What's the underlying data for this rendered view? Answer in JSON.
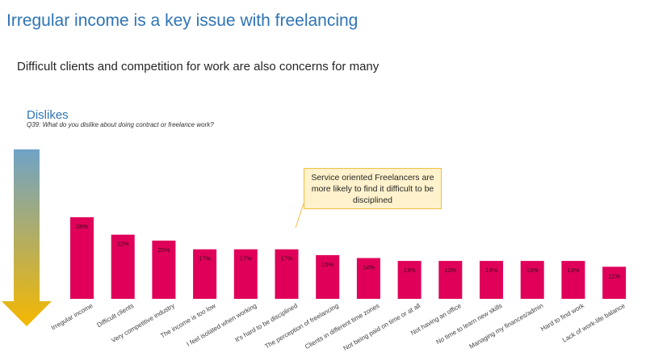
{
  "slide": {
    "title": "Irregular income is a key issue with freelancing",
    "subtitle": "Difficult clients and competition for work are also concerns for many"
  },
  "section": {
    "title": "Dislikes",
    "question": "Q39: What do you dislike about doing contract or freelance work?"
  },
  "callout": {
    "text": "Service oriented Freelancers are more likely to find it difficult to be disciplined"
  },
  "colors": {
    "bar": "#e0005a",
    "arrow_top": "#6fa3c7",
    "arrow_bottom": "#f5b800",
    "callout_fill": "#fff2cc",
    "callout_border": "#f0c040"
  },
  "chart_data": {
    "type": "bar",
    "categories": [
      "Irregular income",
      "Difficult clients",
      "Very competitive industry",
      "The income is too low",
      "I feel isolated when working",
      "It's hard to be disciplined",
      "The perception of freelancing",
      "Clients in different time zones",
      "Not being paid on time or at all",
      "Not having an office",
      "No time to learn new skills",
      "Managing my finances/admin",
      "Hard to find work",
      "Lack of work-life balance"
    ],
    "values": [
      28,
      22,
      20,
      17,
      17,
      17,
      15,
      14,
      13,
      13,
      13,
      13,
      13,
      11
    ],
    "data_labels": [
      "28%",
      "22%",
      "20%",
      "17%",
      "17%",
      "17%",
      "15%",
      "14%",
      "13%",
      "13%",
      "13%",
      "13%",
      "13%",
      "11%"
    ],
    "ylim": [
      0,
      28
    ],
    "grid": false,
    "legend": "none"
  }
}
